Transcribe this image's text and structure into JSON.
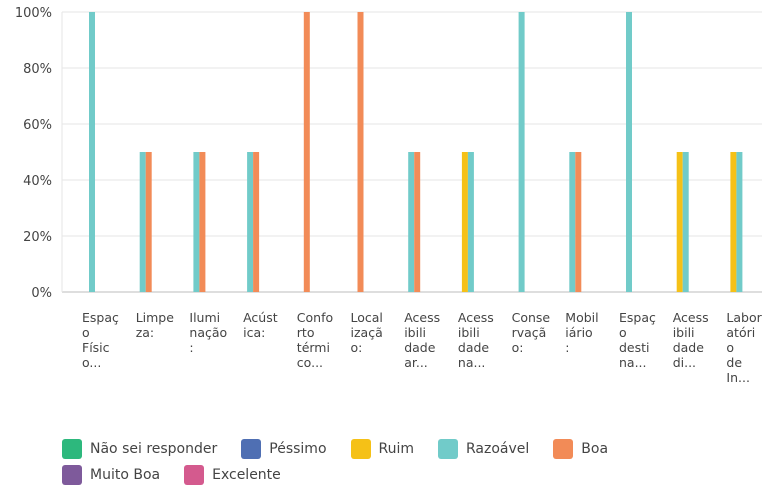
{
  "chart_data": {
    "type": "bar",
    "title": "",
    "xlabel": "",
    "ylabel": "",
    "ylim": [
      0,
      100
    ],
    "yticks": [
      "0%",
      "20%",
      "40%",
      "60%",
      "80%",
      "100%"
    ],
    "grid": true,
    "legend_position": "bottom",
    "categories": [
      [
        "Espaç",
        "o",
        "Físic",
        "o..."
      ],
      [
        "Limpe",
        "za:"
      ],
      [
        "Ilumi",
        "nação",
        ":"
      ],
      [
        "Acúst",
        "ica:"
      ],
      [
        "Confo",
        "rto",
        "térmi",
        "co..."
      ],
      [
        "Local",
        "izaçã",
        "o:"
      ],
      [
        "Acess",
        "ibili",
        "dade",
        "ar..."
      ],
      [
        "Acess",
        "ibili",
        "dade",
        "na..."
      ],
      [
        "Conse",
        "rvaçã",
        "o:"
      ],
      [
        "Mobil",
        "iário",
        ":"
      ],
      [
        "Espaç",
        "o",
        "desti",
        "na..."
      ],
      [
        "Acess",
        "ibili",
        "dade",
        "di..."
      ],
      [
        "Labor",
        "atóri",
        "o",
        "de",
        "In..."
      ]
    ],
    "series": [
      {
        "name": "Não sei responder",
        "color": "#2db87d",
        "values": [
          0,
          0,
          0,
          0,
          0,
          0,
          0,
          0,
          0,
          0,
          0,
          0,
          0
        ]
      },
      {
        "name": "Péssimo",
        "color": "#4f6fb3",
        "values": [
          0,
          0,
          0,
          0,
          0,
          0,
          0,
          0,
          0,
          0,
          0,
          0,
          0
        ]
      },
      {
        "name": "Ruim",
        "color": "#f5c117",
        "values": [
          0,
          0,
          0,
          0,
          0,
          0,
          0,
          50,
          0,
          0,
          0,
          50,
          50
        ]
      },
      {
        "name": "Razoável",
        "color": "#71cbc9",
        "values": [
          100,
          50,
          50,
          50,
          0,
          0,
          50,
          50,
          100,
          50,
          100,
          50,
          50
        ]
      },
      {
        "name": "Boa",
        "color": "#f28b57",
        "values": [
          0,
          50,
          50,
          50,
          100,
          100,
          50,
          0,
          0,
          50,
          0,
          0,
          0
        ]
      },
      {
        "name": "Muito Boa",
        "color": "#7e5a9b",
        "values": [
          0,
          0,
          0,
          0,
          0,
          0,
          0,
          0,
          0,
          0,
          0,
          0,
          0
        ]
      },
      {
        "name": "Excelente",
        "color": "#d45a8e",
        "values": [
          0,
          0,
          0,
          0,
          0,
          0,
          0,
          0,
          0,
          0,
          0,
          0,
          0
        ]
      }
    ]
  }
}
